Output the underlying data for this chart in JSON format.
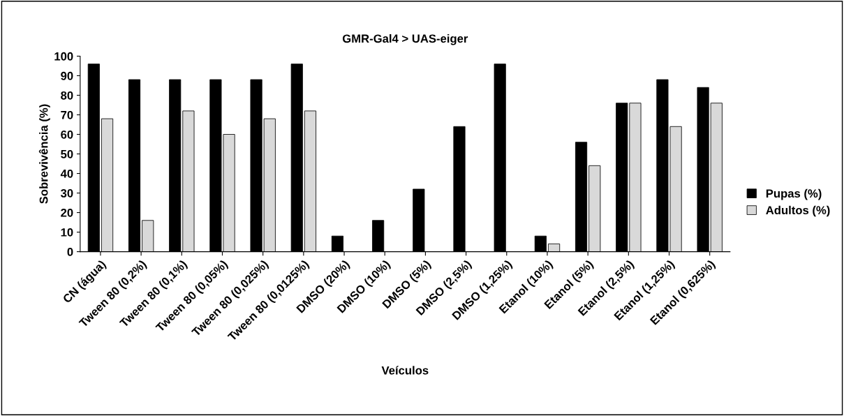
{
  "chart_data": {
    "type": "bar",
    "title": "GMR-Gal4 > UAS-eiger",
    "xlabel": "Veículos",
    "ylabel": "Sobrevivência (%)",
    "categories": [
      "CN (água)",
      "Tween 80 (0,2%)",
      "Tween 80 (0,1%)",
      "Tween 80 (0,05%)",
      "Tween 80 (0,025%)",
      "Tween 80 (0,0125%)",
      "DMSO (20%)",
      "DMSO (10%)",
      "DMSO (5%)",
      "DMSO (2,5%)",
      "DMSO (1,25%)",
      "Etanol (10%)",
      "Etanol (5%)",
      "Etanol (2,5%)",
      "Etanol (1,25%)",
      "Etanol (0,625%)"
    ],
    "series": [
      {
        "name": "Pupas (%)",
        "color": "#000000",
        "values": [
          96,
          88,
          88,
          88,
          88,
          96,
          8,
          16,
          32,
          64,
          96,
          8,
          56,
          76,
          88,
          84
        ]
      },
      {
        "name": "Adultos (%)",
        "color": "#d9d9d9",
        "values": [
          68,
          16,
          72,
          60,
          68,
          72,
          null,
          null,
          null,
          null,
          null,
          4,
          44,
          76,
          64,
          76
        ]
      }
    ],
    "ylim": [
      0,
      100
    ],
    "yticks": [
      0,
      10,
      20,
      30,
      40,
      50,
      60,
      70,
      80,
      90,
      100
    ],
    "grid": false,
    "legend": "right"
  }
}
